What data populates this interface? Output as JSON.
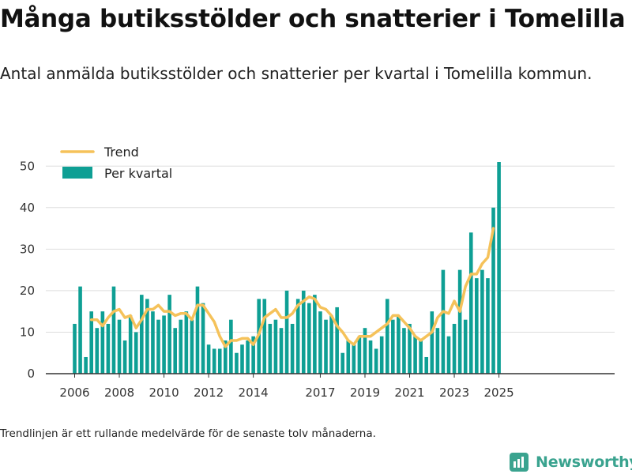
{
  "title": "Många butiksstölder och snatterier i Tomelilla",
  "subtitle": "Antal anmälda butiksstölder och snatterier per kvartal i Tomelilla kommun.",
  "footnote": "Trendlinjen är ett rullande medelvärde för de senaste tolv månaderna.",
  "brand": "Newsworthy",
  "colors": {
    "bars": "#0e9f94",
    "trend": "#f5c25a",
    "grid": "#dddddd",
    "axis": "#333333",
    "brand": "#3aa38f"
  },
  "chart_data": {
    "type": "bar",
    "title": "",
    "xlabel": "",
    "ylabel": "",
    "ylim": [
      0,
      55
    ],
    "yticks": [
      0,
      10,
      20,
      30,
      40,
      50
    ],
    "xticks": [
      "2006",
      "2008",
      "2010",
      "2012",
      "2014",
      "2017",
      "2019",
      "2021",
      "2023",
      "2025"
    ],
    "grid": true,
    "legend_position": "top-left",
    "series": [
      {
        "name": "Per kvartal",
        "type": "bar",
        "values": [
          12,
          21,
          4,
          15,
          11,
          15,
          12,
          21,
          13,
          8,
          14,
          10,
          19,
          18,
          15,
          13,
          14,
          19,
          11,
          13,
          15,
          13,
          21,
          17,
          7,
          6,
          6,
          8,
          13,
          5,
          7,
          8,
          9,
          18,
          18,
          12,
          13,
          11,
          20,
          12,
          18,
          20,
          17,
          19,
          15,
          13,
          14,
          16,
          5,
          8,
          7,
          9,
          11,
          8,
          6,
          9,
          18,
          13,
          14,
          11,
          12,
          9,
          8,
          4,
          15,
          11,
          25,
          9,
          12,
          25,
          13,
          34,
          23,
          25,
          23,
          40,
          51
        ]
      },
      {
        "name": "Trend",
        "type": "line",
        "start_index": 3,
        "values": [
          13,
          13,
          11.5,
          13.5,
          15,
          15.5,
          13.5,
          14,
          11,
          13,
          15.5,
          15.5,
          16.5,
          15,
          15,
          14,
          14.5,
          14.5,
          13,
          16.5,
          16.5,
          14.5,
          12.5,
          9,
          6.5,
          8,
          8,
          8.5,
          8.5,
          7,
          9.5,
          13.5,
          14.5,
          15.5,
          13.5,
          13.5,
          14.5,
          16.5,
          17.5,
          18.5,
          18,
          16,
          15.5,
          14,
          11.5,
          10,
          8,
          7,
          9,
          9,
          9,
          10,
          11,
          12,
          14,
          14,
          12.5,
          11,
          9,
          8,
          9,
          10,
          13.5,
          15,
          14.5,
          17.5,
          15,
          21,
          24,
          24,
          26.5,
          28,
          35
        ]
      }
    ]
  }
}
